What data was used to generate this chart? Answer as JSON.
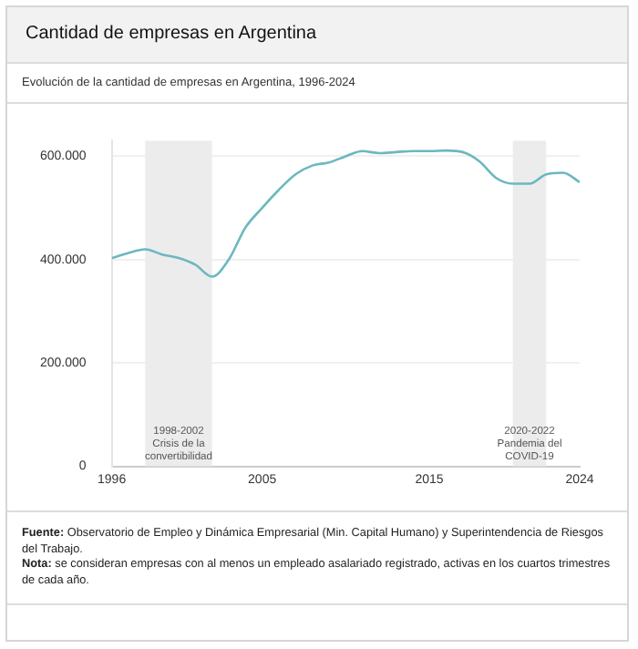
{
  "chart_data": {
    "type": "line",
    "title": "Cantidad de empresas en Argentina",
    "subtitle": "Evolución de la cantidad de empresas en Argentina, 1996-2024",
    "x": [
      1996,
      1997,
      1998,
      1999,
      2000,
      2001,
      2002,
      2003,
      2004,
      2005,
      2006,
      2007,
      2008,
      2009,
      2010,
      2011,
      2012,
      2013,
      2014,
      2015,
      2016,
      2017,
      2018,
      2019,
      2020,
      2021,
      2022,
      2023,
      2024
    ],
    "series": [
      {
        "color": "#6bb8bf",
        "values": [
          403000,
          413000,
          420000,
          410000,
          403000,
          390000,
          367000,
          400000,
          462000,
          500000,
          535000,
          565000,
          582000,
          588000,
          600000,
          610000,
          606000,
          608000,
          610000,
          610000,
          611000,
          608000,
          590000,
          558000,
          547000,
          547000,
          565000,
          568000,
          550000
        ]
      }
    ],
    "xlim": [
      1996,
      2024
    ],
    "xticks": [
      1996,
      2005,
      2015,
      2024
    ],
    "ylim": [
      0,
      630000
    ],
    "yticks": [
      0,
      {
        "value": 200000,
        "label": "200.000"
      },
      {
        "value": 400000,
        "label": "400.000"
      },
      {
        "value": 600000,
        "label": "600.000"
      }
    ],
    "grid": "y",
    "legend": false,
    "marker": "none",
    "line_style": "solid",
    "bands": [
      {
        "axis": "x",
        "from": 1998,
        "to": 2002,
        "label": "1998-2002 Crisis de la convertibilidad",
        "color": "#ececec"
      },
      {
        "axis": "x",
        "from": 2020,
        "to": 2022,
        "label": "2020-2022 Pandemia del COVID-19",
        "color": "#ececec"
      }
    ],
    "annotations": [
      "Fuente: Observatorio de Empleo y Dinámica Empresarial (Min. Capital Humano) y Superintendencia de Riesgos del Trabajo.",
      "Nota: se consideran empresas con al menos un empleado asalariado registrado, activas en los cuartos trimestres de cada año."
    ]
  }
}
